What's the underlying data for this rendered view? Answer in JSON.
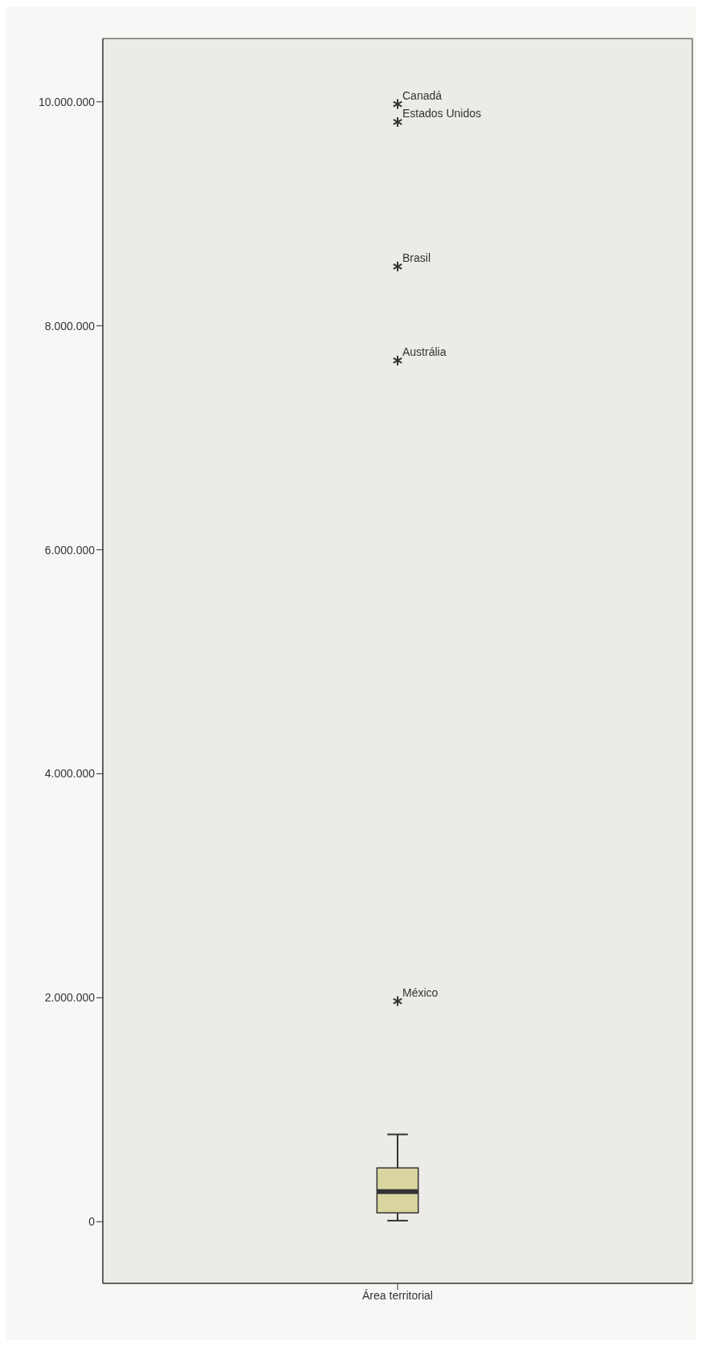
{
  "chart_data": {
    "type": "box",
    "categories": [
      "Área territorial"
    ],
    "boxes": [
      {
        "low": 10000,
        "q1": 80000,
        "median": 270000,
        "q3": 480000,
        "high": 780000,
        "outliers": [
          9980000,
          9820000,
          8530000,
          7690000,
          1970000
        ]
      }
    ],
    "color": "#d9d5a0",
    "marker": "star",
    "ylim": [
      -550000,
      10565000
    ],
    "yticks": [
      {
        "value": 0,
        "label": "0"
      },
      {
        "value": 2000000,
        "label": "2.000.000"
      },
      {
        "value": 4000000,
        "label": "4.000.000"
      },
      {
        "value": 6000000,
        "label": "6.000.000"
      },
      {
        "value": 8000000,
        "label": "8.000.000"
      },
      {
        "value": 10000000,
        "label": "10.000.000"
      }
    ],
    "grid": false,
    "legend": false,
    "annotations": [
      "Canadá",
      "Estados Unidos",
      "Brasil",
      "Austrália",
      "México"
    ]
  }
}
